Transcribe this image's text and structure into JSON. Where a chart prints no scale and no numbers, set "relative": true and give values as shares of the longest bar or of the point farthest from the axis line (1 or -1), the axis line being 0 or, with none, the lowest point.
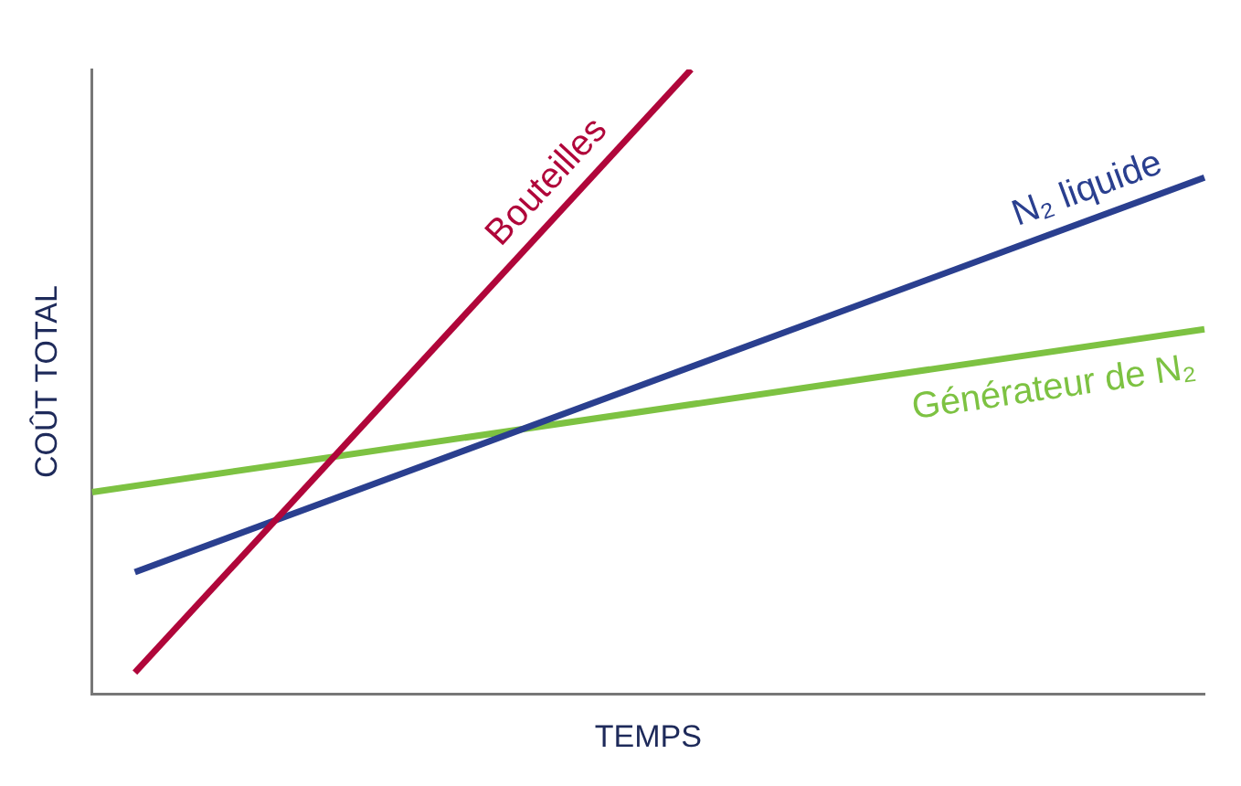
{
  "chart_data": {
    "type": "line",
    "relative": true,
    "xlabel": "TEMPS",
    "ylabel": "COÛT TOTAL",
    "categories": [
      null,
      null,
      null,
      null,
      null,
      null,
      null,
      null,
      null,
      null,
      null,
      null,
      null,
      null,
      null,
      null,
      null,
      null,
      null,
      null,
      null,
      null,
      null,
      null,
      null,
      null,
      null
    ],
    "series": [
      {
        "name": "Bouteilles",
        "color": "#b0063a",
        "values": [
          null,
          0.034,
          null,
          null,
          null,
          null,
          null,
          null,
          null,
          null,
          null,
          null,
          null,
          null,
          1,
          null,
          null,
          null,
          null,
          null,
          null,
          null,
          null,
          null,
          null,
          null,
          null
        ]
      },
      {
        "name": "N₂ liquide",
        "color": "#2a3f8f",
        "values": [
          null,
          0.195,
          null,
          null,
          null,
          null,
          null,
          null,
          null,
          null,
          null,
          null,
          null,
          null,
          null,
          null,
          null,
          null,
          null,
          null,
          null,
          null,
          null,
          null,
          null,
          null,
          0.827
        ]
      },
      {
        "name": "Générateur de N₂",
        "color": "#7dc242",
        "values": [
          0.323,
          null,
          null,
          null,
          null,
          null,
          null,
          null,
          null,
          null,
          null,
          null,
          null,
          null,
          null,
          null,
          null,
          null,
          null,
          null,
          null,
          null,
          null,
          null,
          null,
          null,
          0.584
        ]
      }
    ],
    "grid": false,
    "legend": false,
    "marker": "none",
    "line_style": "solid"
  }
}
